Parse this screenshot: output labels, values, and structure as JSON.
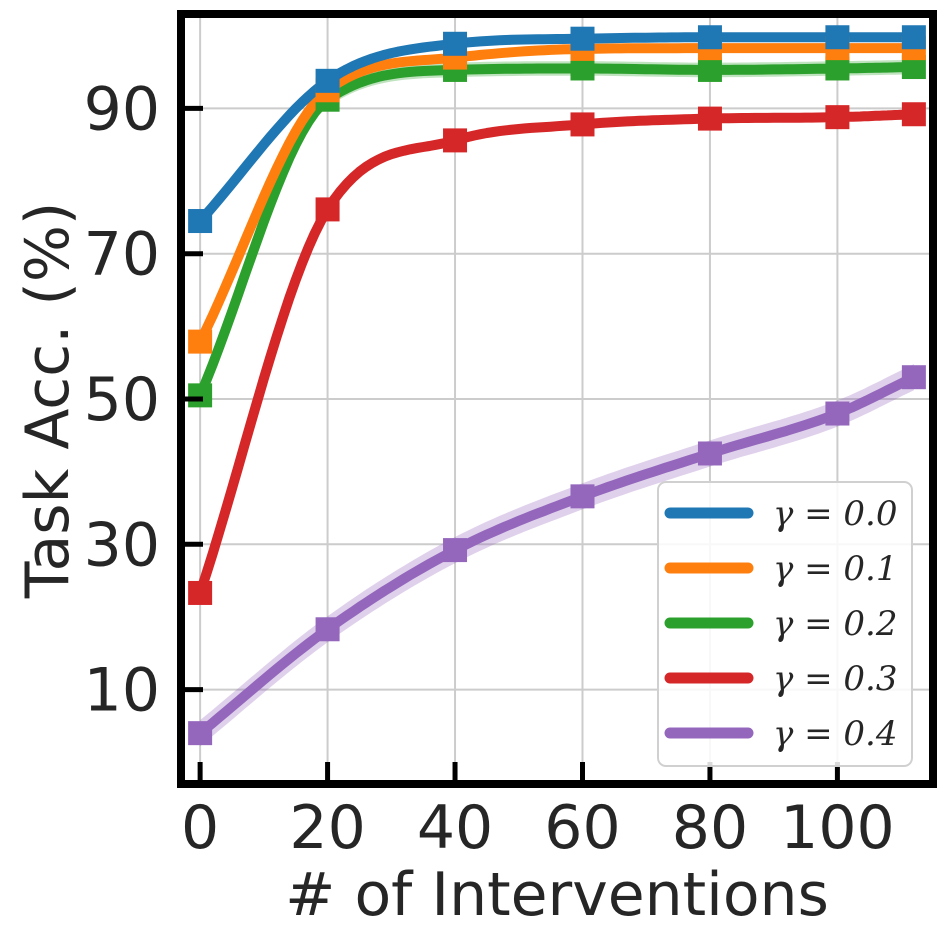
{
  "chart_data": {
    "type": "line",
    "xlabel": "# of Interventions",
    "ylabel": "Task Acc. (%)",
    "xlim": [
      -3,
      115
    ],
    "ylim": [
      -3,
      103
    ],
    "xticks": [
      0,
      20,
      40,
      60,
      80,
      100
    ],
    "yticks": [
      10,
      30,
      50,
      70,
      90
    ],
    "grid": true,
    "legend_position": "bottom-right",
    "marker": "square",
    "x": [
      0,
      20,
      40,
      60,
      80,
      100,
      112
    ],
    "series": [
      {
        "name": "γ = 0.0",
        "color": "#1f77b4",
        "values": [
          74.5,
          93.8,
          98.9,
          99.6,
          99.8,
          99.8,
          99.8
        ],
        "band": 0.3
      },
      {
        "name": "γ = 0.1",
        "color": "#ff7f0e",
        "values": [
          57.9,
          92.5,
          97.0,
          98.2,
          98.3,
          98.3,
          98.3
        ],
        "band": 0.6
      },
      {
        "name": "γ = 0.2",
        "color": "#2ca02c",
        "values": [
          50.5,
          91.2,
          95.3,
          95.5,
          95.3,
          95.5,
          95.7
        ],
        "band": 1.0
      },
      {
        "name": "γ = 0.3",
        "color": "#d62728",
        "values": [
          23.3,
          76.1,
          85.6,
          87.8,
          88.6,
          88.8,
          89.2
        ],
        "band": 0.6
      },
      {
        "name": "γ = 0.4",
        "color": "#9467bd",
        "values": [
          4.0,
          18.3,
          29.2,
          36.6,
          42.5,
          48.0,
          53.0
        ],
        "band": 1.8
      }
    ]
  }
}
